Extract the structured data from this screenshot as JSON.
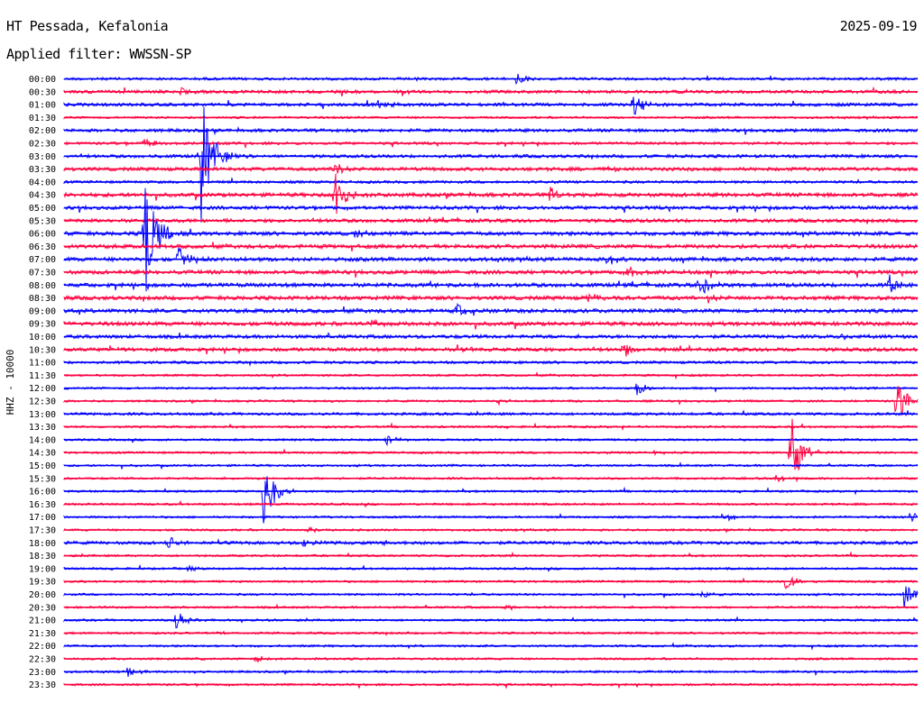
{
  "header": {
    "station": "HT Pessada, Kefalonia",
    "date": "2025-09-19",
    "filter": "Applied filter: WWSSN-SP"
  },
  "chart_data": {
    "type": "line",
    "title": "",
    "ylabel": "HHZ - 10000",
    "xlabel": "",
    "colors": {
      "odd": "#ff0040",
      "even": "#0000ff"
    },
    "row_labels": [
      "00:00",
      "00:30",
      "01:00",
      "01:30",
      "02:00",
      "02:30",
      "03:00",
      "03:30",
      "04:00",
      "04:30",
      "05:00",
      "05:30",
      "06:00",
      "06:30",
      "07:00",
      "07:30",
      "08:00",
      "08:30",
      "09:00",
      "09:30",
      "10:00",
      "10:30",
      "11:00",
      "11:30",
      "12:00",
      "12:30",
      "13:00",
      "13:30",
      "14:00",
      "14:30",
      "15:00",
      "15:30",
      "16:00",
      "16:30",
      "17:00",
      "17:30",
      "18:00",
      "18:30",
      "19:00",
      "19:30",
      "20:00",
      "20:30",
      "21:00",
      "21:30",
      "22:00",
      "22:30",
      "23:00",
      "23:30"
    ],
    "x_range_minutes": [
      0,
      30
    ],
    "noise": [
      1.5,
      1.8,
      1.8,
      1.2,
      1.8,
      1.5,
      1.8,
      2.0,
      1.5,
      2.2,
      2.0,
      2.0,
      2.2,
      2.2,
      2.2,
      2.2,
      2.2,
      2.2,
      2.2,
      2.2,
      2.0,
      2.0,
      1.5,
      1.2,
      1.2,
      1.2,
      1.5,
      1.2,
      1.2,
      1.2,
      1.2,
      1.2,
      1.2,
      1.2,
      1.2,
      1.2,
      1.8,
      1.2,
      1.2,
      1.2,
      1.2,
      1.2,
      1.2,
      1.2,
      1.2,
      1.2,
      1.2,
      1.2
    ],
    "events": [
      {
        "row": 0,
        "t": 15.8,
        "amp": 10
      },
      {
        "row": 1,
        "t": 4.0,
        "amp": 5
      },
      {
        "row": 2,
        "t": 11.0,
        "amp": 8
      },
      {
        "row": 2,
        "t": 20.0,
        "amp": 15
      },
      {
        "row": 5,
        "t": 2.8,
        "amp": 8
      },
      {
        "row": 6,
        "t": 4.8,
        "amp": 95
      },
      {
        "row": 7,
        "t": 9.5,
        "amp": 8
      },
      {
        "row": 7,
        "t": 19.0,
        "amp": 4
      },
      {
        "row": 9,
        "t": 9.5,
        "amp": 28
      },
      {
        "row": 9,
        "t": 17.0,
        "amp": 10
      },
      {
        "row": 12,
        "t": 2.8,
        "amp": 100
      },
      {
        "row": 12,
        "t": 10.2,
        "amp": 5
      },
      {
        "row": 14,
        "t": 4.0,
        "amp": 18
      },
      {
        "row": 14,
        "t": 19.0,
        "amp": 8
      },
      {
        "row": 15,
        "t": 19.8,
        "amp": 8
      },
      {
        "row": 16,
        "t": 22.3,
        "amp": 15
      },
      {
        "row": 16,
        "t": 29.0,
        "amp": 12
      },
      {
        "row": 16,
        "t": 12.8,
        "amp": 4
      },
      {
        "row": 17,
        "t": 18.4,
        "amp": 5
      },
      {
        "row": 17,
        "t": 22.6,
        "amp": 6
      },
      {
        "row": 18,
        "t": 13.8,
        "amp": 10
      },
      {
        "row": 19,
        "t": 10.8,
        "amp": 5
      },
      {
        "row": 20,
        "t": 27.3,
        "amp": 6
      },
      {
        "row": 21,
        "t": 13.8,
        "amp": 7
      },
      {
        "row": 21,
        "t": 19.6,
        "amp": 10
      },
      {
        "row": 21,
        "t": 1.5,
        "amp": 4
      },
      {
        "row": 24,
        "t": 20.1,
        "amp": 10
      },
      {
        "row": 25,
        "t": 29.2,
        "amp": 35
      },
      {
        "row": 25,
        "t": 15.2,
        "amp": 4
      },
      {
        "row": 28,
        "t": 11.3,
        "amp": 8
      },
      {
        "row": 29,
        "t": 25.5,
        "amp": 55
      },
      {
        "row": 29,
        "t": 20.7,
        "amp": 3
      },
      {
        "row": 31,
        "t": 25.0,
        "amp": 5
      },
      {
        "row": 32,
        "t": 7.0,
        "amp": 45
      },
      {
        "row": 34,
        "t": 23.1,
        "amp": 8
      },
      {
        "row": 34,
        "t": 29.7,
        "amp": 6
      },
      {
        "row": 35,
        "t": 8.6,
        "amp": 4
      },
      {
        "row": 36,
        "t": 3.6,
        "amp": 10
      },
      {
        "row": 36,
        "t": 8.4,
        "amp": 4
      },
      {
        "row": 36,
        "t": 11.2,
        "amp": 3
      },
      {
        "row": 38,
        "t": 4.3,
        "amp": 3
      },
      {
        "row": 39,
        "t": 25.3,
        "amp": 12
      },
      {
        "row": 40,
        "t": 22.4,
        "amp": 4
      },
      {
        "row": 40,
        "t": 29.5,
        "amp": 18
      },
      {
        "row": 41,
        "t": 15.5,
        "amp": 4
      },
      {
        "row": 42,
        "t": 3.9,
        "amp": 12
      },
      {
        "row": 43,
        "t": 5.5,
        "amp": 2
      },
      {
        "row": 45,
        "t": 6.7,
        "amp": 4
      },
      {
        "row": 46,
        "t": 2.2,
        "amp": 6
      }
    ]
  }
}
